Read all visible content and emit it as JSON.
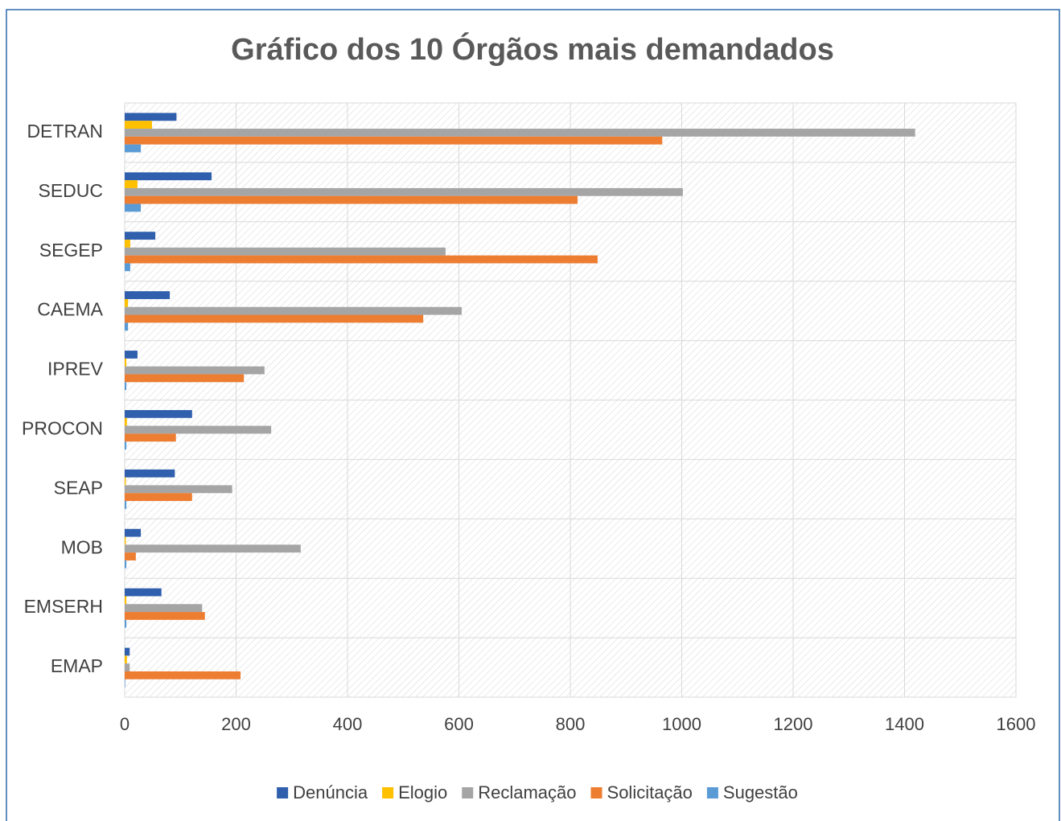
{
  "chart_data": {
    "type": "barh",
    "title": "Gráfico dos 10 Órgãos mais demandados",
    "categories": [
      "DETRAN",
      "SEDUC",
      "SEGEP",
      "CAEMA",
      "IPREV",
      "PROCON",
      "SEAP",
      "MOB",
      "EMSERH",
      "EMAP"
    ],
    "series": [
      {
        "name": "Denúncia",
        "color": "#2f5fad",
        "values": [
          93,
          156,
          55,
          81,
          23,
          121,
          90,
          29,
          66,
          9
        ]
      },
      {
        "name": "Elogio",
        "color": "#ffc000",
        "values": [
          49,
          23,
          10,
          6,
          3,
          4,
          2,
          2,
          3,
          4
        ]
      },
      {
        "name": "Reclamação",
        "color": "#a5a5a5",
        "values": [
          1419,
          1002,
          576,
          605,
          251,
          263,
          193,
          316,
          139,
          9
        ]
      },
      {
        "name": "Solicitação",
        "color": "#ed7d31",
        "values": [
          965,
          813,
          849,
          536,
          214,
          92,
          121,
          20,
          144,
          208
        ]
      },
      {
        "name": "Sugestão",
        "color": "#5b9bd5",
        "values": [
          29,
          29,
          10,
          6,
          3,
          3,
          3,
          3,
          3,
          1
        ]
      }
    ],
    "xlim": [
      0,
      1600
    ],
    "xticks": [
      0,
      200,
      400,
      600,
      800,
      1000,
      1200,
      1400,
      1600
    ],
    "grid": true,
    "legend": "bottom"
  }
}
